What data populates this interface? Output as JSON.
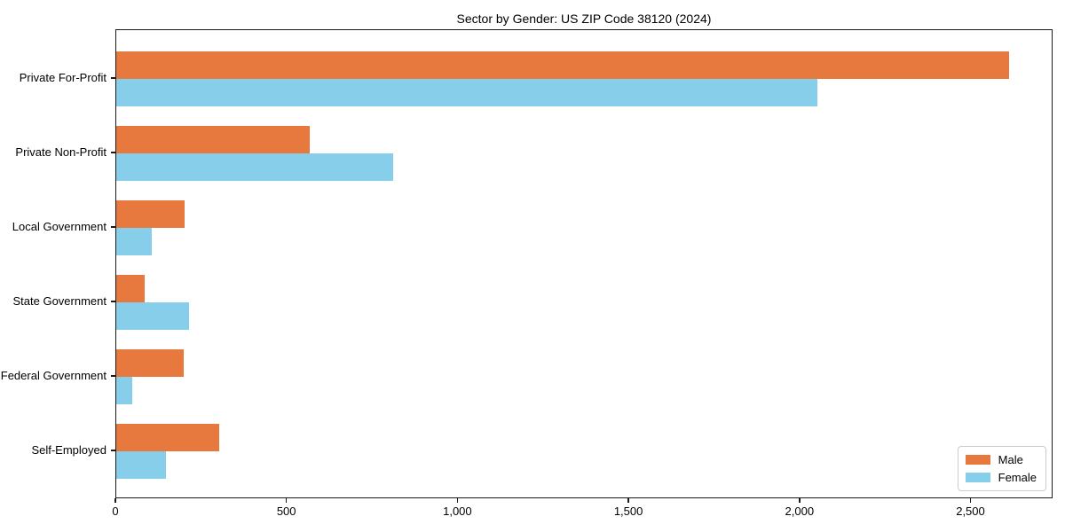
{
  "title": "Sector by Gender: US ZIP Code 38120 (2024)",
  "chart_data": {
    "type": "bar",
    "orientation": "horizontal",
    "title": "Sector by Gender: US ZIP Code 38120 (2024)",
    "categories": [
      "Private For-Profit",
      "Private Non-Profit",
      "Local Government",
      "State Government",
      "Federal Government",
      "Self-Employed"
    ],
    "series": [
      {
        "name": "Male",
        "color": "#E8793E",
        "values": [
          2610,
          565,
          200,
          82,
          196,
          302
        ]
      },
      {
        "name": "Female",
        "color": "#87CEEB",
        "values": [
          2050,
          810,
          103,
          212,
          47,
          145
        ]
      }
    ],
    "xlabel": "",
    "ylabel": "",
    "xlim": [
      0,
      2740
    ],
    "xticks": [
      0,
      500,
      1000,
      1500,
      2000,
      2500
    ],
    "xtick_labels": [
      "0",
      "500",
      "1,000",
      "1,500",
      "2,000",
      "2,500"
    ],
    "grid": false,
    "legend_position": "lower right",
    "background_color": "#ffffff",
    "axis_color": "#1a1a1a"
  }
}
